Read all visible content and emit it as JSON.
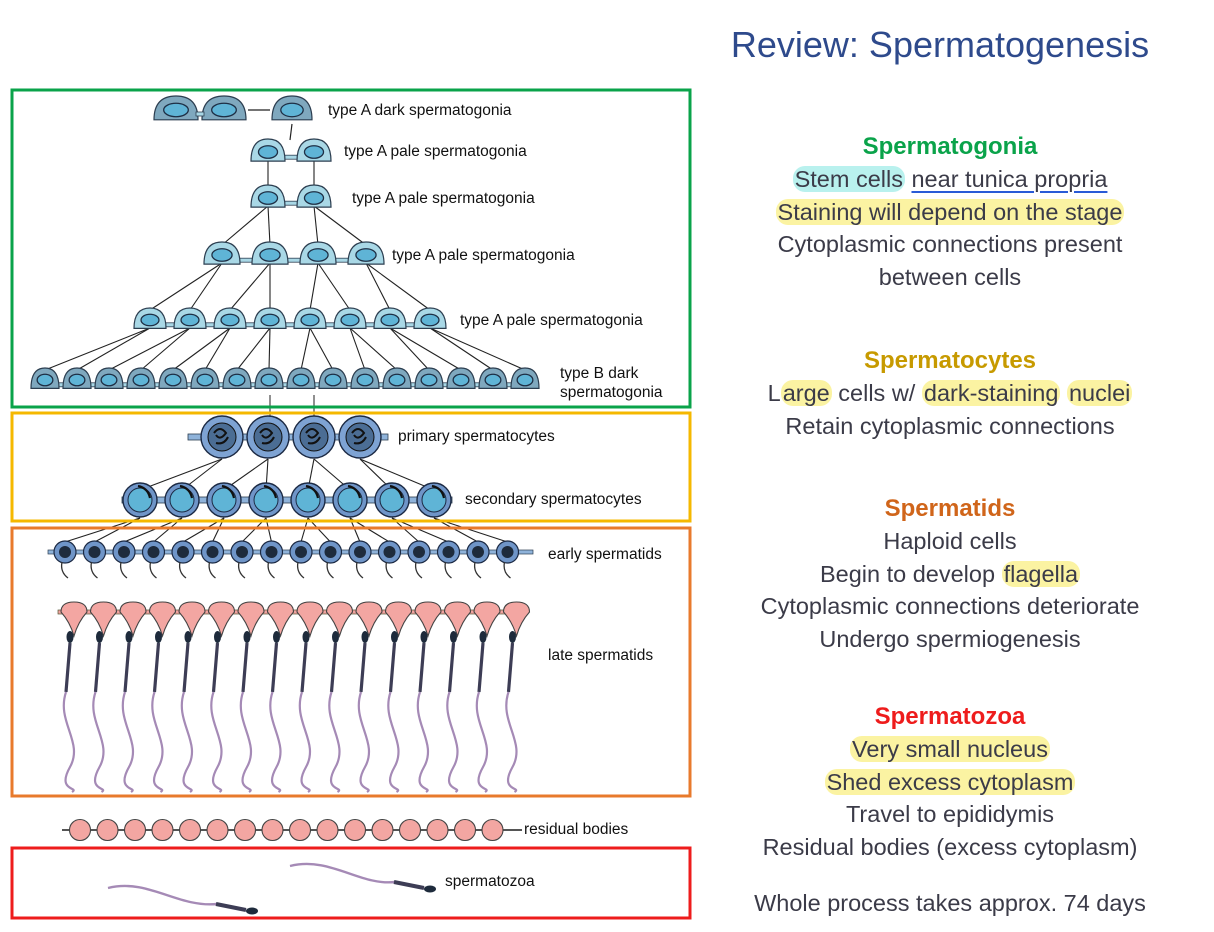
{
  "title": "Review: Spermatogenesis",
  "colors": {
    "spermatogonia": "#0aa34a",
    "spermatocytes": "#f5b800",
    "spermatids": "#e87a2c",
    "spermatozoa": "#ee1c1c",
    "title": "#2e4a8c"
  },
  "diagram_labels": {
    "type_a_dark": "type A dark spermatogonia",
    "type_a_pale_1": "type A pale spermatogonia",
    "type_a_pale_2": "type A pale spermatogonia",
    "type_a_pale_3": "type A pale spermatogonia",
    "type_a_pale_4": "type A pale spermatogonia",
    "type_b_dark_1": "type B dark",
    "type_b_dark_2": "spermatogonia",
    "primary_spermatocytes": "primary spermatocytes",
    "secondary_spermatocytes": "secondary spermatocytes",
    "early_spermatids": "early spermatids",
    "late_spermatids": "late spermatids",
    "residual_bodies": "residual bodies",
    "spermatozoa": "spermatozoa"
  },
  "sections": {
    "spermatogonia": {
      "heading": "Spermatogonia",
      "line1_hl": "Stem cells",
      "line1_ul": "near tunica propria",
      "line2": "Staining will depend on the stage",
      "line3": "Cytoplasmic connections present",
      "line4": "between cells"
    },
    "spermatocytes": {
      "heading": "Spermatocytes",
      "line1_a": "L",
      "line1_b": "arge",
      "line1_c": " cells w/ ",
      "line1_d": "dark-staining",
      "line1_e": " ",
      "line1_f": "nuclei",
      "line2": "Retain cytoplasmic connections"
    },
    "spermatids": {
      "heading": "Spermatids",
      "line1": "Haploid cells",
      "line2_a": "Begin to develop ",
      "line2_b": "flagella",
      "line3": "Cytoplasmic connections deteriorate",
      "line4": "Undergo spermiogenesis"
    },
    "spermatozoa": {
      "heading": "Spermatozoa",
      "line1": "Very small nucleus",
      "line2": "Shed excess cytoplasm",
      "line3": "Travel to epididymis",
      "line4": "Residual bodies (excess cytoplasm)"
    }
  },
  "footer": "Whole process takes approx. 74 days"
}
